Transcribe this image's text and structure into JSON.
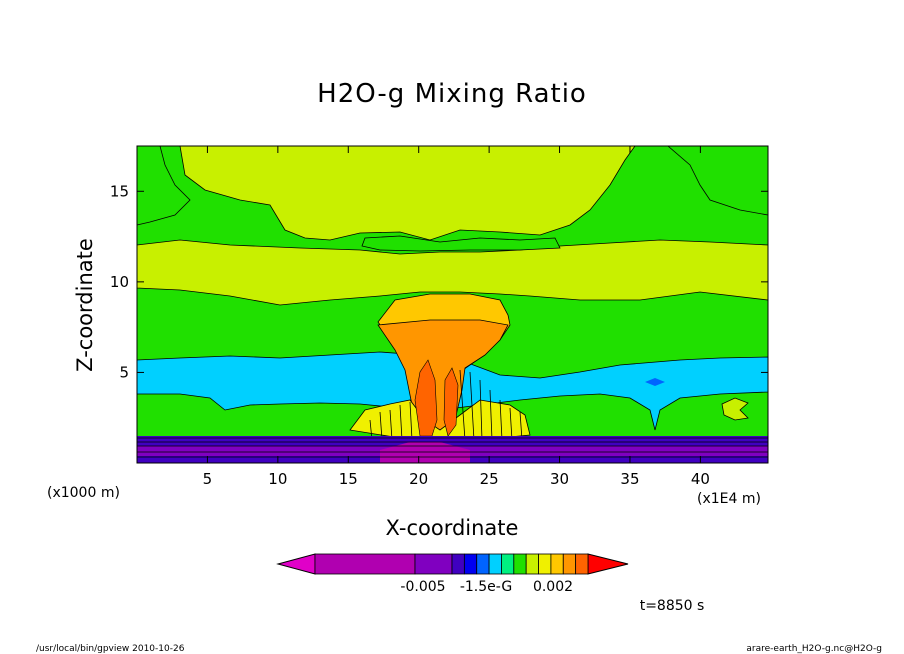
{
  "chart_data": {
    "type": "heatmap",
    "title": "H2O-g Mixing Ratio",
    "xlabel": "X-coordinate",
    "ylabel": "Z-coordinate",
    "x_unit": "(x1E4 m)",
    "y_unit": "(x1000 m)",
    "xlim": [
      0,
      44.8
    ],
    "ylim": [
      0,
      17.5
    ],
    "x_ticks": [
      5,
      10,
      15,
      20,
      25,
      30,
      35,
      40
    ],
    "x_tick_labels": [
      "5",
      "10",
      "15",
      "20",
      "25",
      "30",
      "35",
      "40"
    ],
    "y_ticks": [
      5,
      10,
      15
    ],
    "y_tick_labels": [
      "5",
      "10",
      "15"
    ],
    "colorbar": {
      "colors": [
        "#e000c8",
        "#b000b0",
        "#8000c0",
        "#4000c0",
        "#0000f0",
        "#0064ff",
        "#00d0ff",
        "#00f080",
        "#20e000",
        "#c8f000",
        "#f0f000",
        "#ffc800",
        "#ff9600",
        "#ff6400",
        "#ff0000"
      ],
      "tick_labels": [
        "-0.005",
        "-1.5e-G",
        "0.002"
      ]
    },
    "time_label": "t=8850 s",
    "footer_left": "/usr/local/bin/gpview   2010-10-26",
    "footer_right": "arare-earth_H2O-g.nc@H2O-g"
  }
}
